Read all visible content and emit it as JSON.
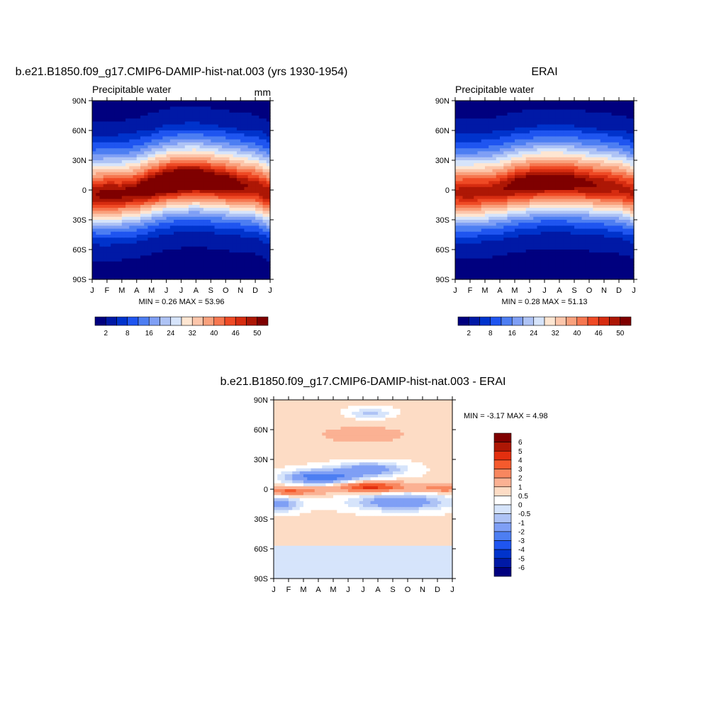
{
  "chart_data": [
    {
      "type": "heatmap",
      "title": "b.e21.B1850.f09_g17.CMIP6-DAMIP-hist-nat.003 (yrs 1930-1954)",
      "subtitle_left": "Precipitable water",
      "subtitle_right": "mm",
      "x_ticks": [
        "J",
        "F",
        "M",
        "A",
        "M",
        "J",
        "J",
        "A",
        "S",
        "O",
        "N",
        "D",
        "J"
      ],
      "y_ticks": [
        "90N",
        "60N",
        "30N",
        "0",
        "30S",
        "60S",
        "90S"
      ],
      "min_max_text": "MIN =   0.26 MAX =  53.96",
      "min": 0.26,
      "max": 53.96,
      "field": {
        "itcz_lat": [
          -5,
          -5,
          -4,
          -2,
          3,
          7,
          9,
          10,
          8,
          6,
          4,
          2,
          -5
        ],
        "peak": [
          48,
          50,
          49,
          50,
          52,
          53,
          54,
          53,
          52,
          51,
          49,
          48,
          48
        ]
      },
      "colorbar_levels": [
        "2",
        "8",
        "16",
        "24",
        "32",
        "40",
        "46",
        "50"
      ]
    },
    {
      "type": "heatmap",
      "title": "ERAI",
      "subtitle_left": "Precipitable water",
      "x_ticks": [
        "J",
        "F",
        "M",
        "A",
        "M",
        "J",
        "J",
        "A",
        "S",
        "O",
        "N",
        "D",
        "J"
      ],
      "y_ticks": [
        "90N",
        "60N",
        "30N",
        "0",
        "30S",
        "60S",
        "90S"
      ],
      "min_max_text": "MIN =   0.28 MAX =  51.13",
      "min": 0.28,
      "max": 51.13,
      "field": {
        "itcz_lat": [
          -3,
          -3,
          -2,
          0,
          4,
          6,
          8,
          8,
          7,
          5,
          4,
          2,
          -3
        ],
        "peak": [
          47,
          48,
          47,
          48,
          50,
          51,
          51,
          51,
          50,
          49,
          48,
          47,
          47
        ]
      },
      "colorbar_levels": [
        "2",
        "8",
        "16",
        "24",
        "32",
        "40",
        "46",
        "50"
      ]
    },
    {
      "type": "heatmap",
      "title": "b.e21.B1850.f09_g17.CMIP6-DAMIP-hist-nat.003 - ERAI",
      "x_ticks": [
        "J",
        "F",
        "M",
        "A",
        "M",
        "J",
        "J",
        "A",
        "S",
        "O",
        "N",
        "D",
        "J"
      ],
      "y_ticks": [
        "90N",
        "60N",
        "30N",
        "0",
        "30S",
        "60S",
        "90S"
      ],
      "min_max_text": "MIN =  -3.17 MAX =   4.98",
      "min": -3.17,
      "max": 4.98,
      "colorbar_levels": [
        "6",
        "5",
        "4",
        "3",
        "2",
        "1",
        "0.5",
        "0",
        "-0.5",
        "-1",
        "-2",
        "-3",
        "-4",
        "-5",
        "-6"
      ]
    }
  ],
  "colors": {
    "sequential": [
      "#00007f",
      "#0019a6",
      "#0033cc",
      "#1f55f0",
      "#4d7ef2",
      "#7f9ff5",
      "#aec3f5",
      "#d6e4fb",
      "#fee6d2",
      "#fcc6ab",
      "#f9a17d",
      "#f67750",
      "#ef4a25",
      "#d62c10",
      "#ad1705",
      "#7f0000"
    ],
    "diverging": [
      "#7f0000",
      "#ad1705",
      "#e32f0f",
      "#f55a2d",
      "#f8875f",
      "#fbb193",
      "#fddcc5",
      "#ffffff",
      "#d6e4fb",
      "#aec3f5",
      "#7f9ff5",
      "#4d7ef2",
      "#1f55f0",
      "#0033cc",
      "#0019a6",
      "#00007f"
    ]
  }
}
